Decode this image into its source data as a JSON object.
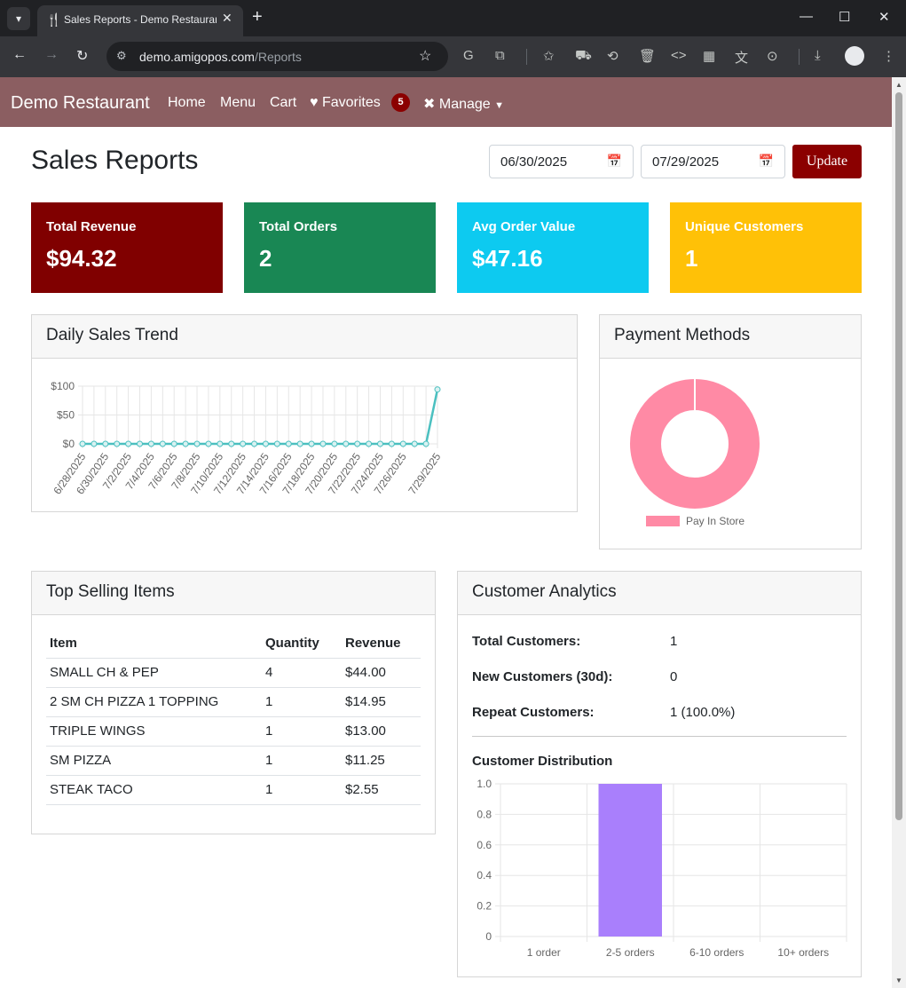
{
  "browser": {
    "tab_title": "Sales Reports - Demo Restaurant",
    "url_host": "demo.amigopos.com",
    "url_path": "/Reports"
  },
  "nav": {
    "brand": "Demo Restaurant",
    "home": "Home",
    "menu": "Menu",
    "cart": "Cart",
    "favorites": "Favorites",
    "favorites_count": "5",
    "manage": "Manage"
  },
  "page": {
    "title": "Sales Reports",
    "start_date": "06/30/2025",
    "end_date": "07/29/2025",
    "update_label": "Update"
  },
  "stats": [
    {
      "label": "Total Revenue",
      "value": "$94.32",
      "color": "#800000"
    },
    {
      "label": "Total Orders",
      "value": "2",
      "color": "#198754"
    },
    {
      "label": "Avg Order Value",
      "value": "$47.16",
      "color": "#0dcaf0"
    },
    {
      "label": "Unique Customers",
      "value": "1",
      "color": "#ffc107"
    }
  ],
  "daily_sales": {
    "title": "Daily Sales Trend",
    "chart_data": {
      "type": "line",
      "x": [
        "6/28/2025",
        "6/29/2025",
        "6/30/2025",
        "7/1/2025",
        "7/2/2025",
        "7/3/2025",
        "7/4/2025",
        "7/5/2025",
        "7/6/2025",
        "7/7/2025",
        "7/8/2025",
        "7/9/2025",
        "7/10/2025",
        "7/11/2025",
        "7/12/2025",
        "7/13/2025",
        "7/14/2025",
        "7/15/2025",
        "7/16/2025",
        "7/17/2025",
        "7/18/2025",
        "7/19/2025",
        "7/20/2025",
        "7/21/2025",
        "7/22/2025",
        "7/23/2025",
        "7/24/2025",
        "7/25/2025",
        "7/26/2025",
        "7/27/2025",
        "7/28/2025",
        "7/29/2025"
      ],
      "x_tick_labels": [
        "6/28/2025",
        "6/30/2025",
        "7/2/2025",
        "7/4/2025",
        "7/6/2025",
        "7/8/2025",
        "7/10/2025",
        "7/12/2025",
        "7/14/2025",
        "7/16/2025",
        "7/18/2025",
        "7/20/2025",
        "7/22/2025",
        "7/24/2025",
        "7/26/2025",
        "7/29/2025"
      ],
      "values": [
        0,
        0,
        0,
        0,
        0,
        0,
        0,
        0,
        0,
        0,
        0,
        0,
        0,
        0,
        0,
        0,
        0,
        0,
        0,
        0,
        0,
        0,
        0,
        0,
        0,
        0,
        0,
        0,
        0,
        0,
        0,
        94.32
      ],
      "y_ticks": [
        "$100",
        "$50",
        "$0"
      ],
      "ylim": [
        0,
        100
      ],
      "color": "#4bc0c0",
      "grid": true
    }
  },
  "payment": {
    "title": "Payment Methods",
    "chart_data": {
      "type": "pie",
      "labels": [
        "Pay In Store"
      ],
      "values": [
        100
      ],
      "colors": [
        "#ff8aa5"
      ],
      "legend": "bottom"
    }
  },
  "top_items": {
    "title": "Top Selling Items",
    "headers": [
      "Item",
      "Quantity",
      "Revenue"
    ],
    "rows": [
      [
        "SMALL CH & PEP",
        "4",
        "$44.00"
      ],
      [
        "2 SM CH PIZZA 1 TOPPING",
        "1",
        "$14.95"
      ],
      [
        "TRIPLE WINGS",
        "1",
        "$13.00"
      ],
      [
        "SM PIZZA",
        "1",
        "$11.25"
      ],
      [
        "STEAK TACO",
        "1",
        "$2.55"
      ]
    ]
  },
  "customer_analytics": {
    "title": "Customer Analytics",
    "total_label": "Total Customers:",
    "total_value": "1",
    "new_label": "New Customers (30d):",
    "new_value": "0",
    "repeat_label": "Repeat Customers:",
    "repeat_value": "1 (100.0%)",
    "distribution_title": "Customer Distribution",
    "chart_data": {
      "type": "bar",
      "categories": [
        "1 order",
        "2-5 orders",
        "6-10 orders",
        "10+ orders"
      ],
      "values": [
        0,
        1,
        0,
        0
      ],
      "y_ticks": [
        "1.0",
        "0.8",
        "0.6",
        "0.4",
        "0.2",
        "0"
      ],
      "ylim": [
        0,
        1
      ],
      "color": "#a97ffc",
      "grid": true
    }
  }
}
